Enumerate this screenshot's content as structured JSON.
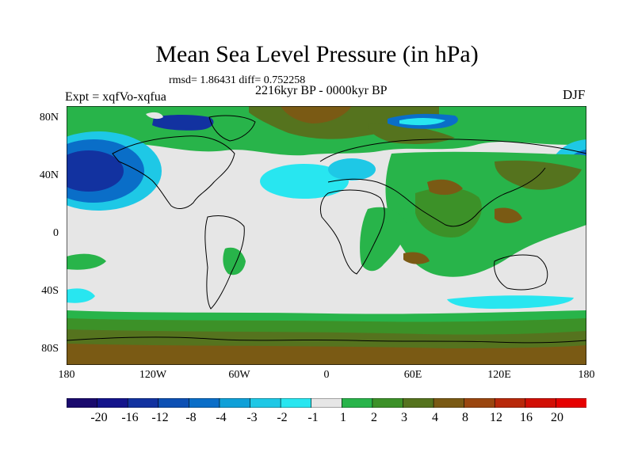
{
  "title": "Mean Sea Level Pressure (in hPa)",
  "stats_line": "rmsd= 1.86431 diff= 0.752258",
  "period": "2216kyr BP - 0000kyr BP",
  "experiment": "Expt = xqfVo-xqfua",
  "season": "DJF",
  "y_ticks": [
    "80N",
    "40N",
    "0",
    "40S",
    "80S"
  ],
  "x_ticks": [
    "180",
    "120W",
    "60W",
    "0",
    "60E",
    "120E",
    "180"
  ],
  "colorbar": {
    "labels": [
      "-20",
      "-16",
      "-12",
      "-8",
      "-4",
      "-3",
      "-2",
      "-1",
      "1",
      "2",
      "3",
      "4",
      "8",
      "12",
      "16",
      "20"
    ],
    "colors": [
      "#1a0a6e",
      "#14148c",
      "#1232a0",
      "#0c50b4",
      "#0a6ec8",
      "#0fa0d8",
      "#1ec8e6",
      "#28e6f0",
      "#e6e6e6",
      "#28b44a",
      "#3c9128",
      "#55731e",
      "#7a5a14",
      "#9a460f",
      "#b8280a",
      "#d20f05",
      "#e60000"
    ]
  },
  "colors": {
    "neutral": "#e6e6e6",
    "green": "#28b44a",
    "dark_green": "#3c9128",
    "olive": "#55731e",
    "brown": "#7a5a14",
    "cyan": "#28e6f0",
    "light_blue": "#1ec8e6",
    "blue": "#0a6ec8",
    "dark_blue": "#1232a0"
  }
}
